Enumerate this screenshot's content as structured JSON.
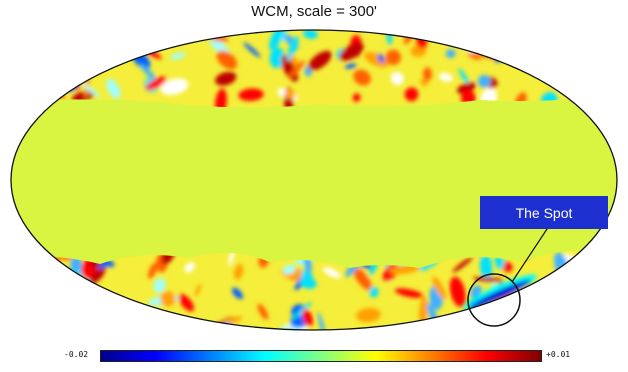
{
  "title": "WCM, scale = 300'",
  "annotation": {
    "label": "The Spot"
  },
  "colorbar": {
    "min_label": "-0.02",
    "max_label": "+0.01",
    "colors": [
      "#00008f",
      "#0000ff",
      "#0080ff",
      "#00ffff",
      "#80ff80",
      "#ffff00",
      "#ff8000",
      "#ff0000",
      "#800000"
    ]
  },
  "colors": {
    "masked_region": "#d9f542",
    "outline": "#111111",
    "marker_circle": "#111111"
  }
}
